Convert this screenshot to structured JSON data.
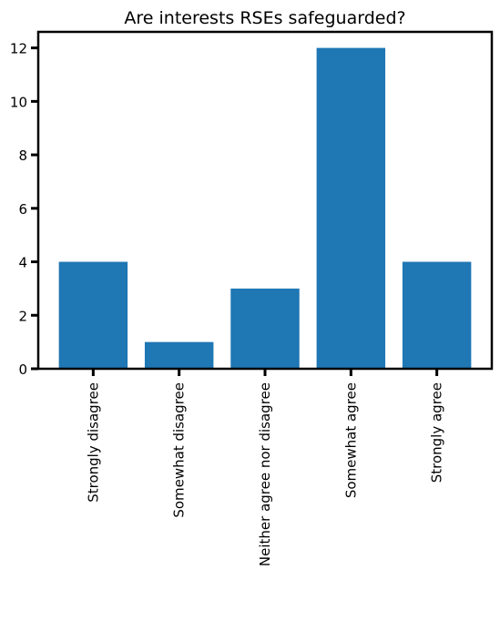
{
  "chart_data": {
    "type": "bar",
    "title": "Are interests RSEs safeguarded?",
    "categories": [
      "Strongly disagree",
      "Somewhat disagree",
      "Neither agree nor disagree",
      "Somewhat agree",
      "Strongly agree"
    ],
    "values": [
      4,
      1,
      3,
      12,
      4
    ],
    "color": "#1f77b4",
    "ylim": [
      0,
      12.6
    ],
    "yticks": [
      0,
      2,
      4,
      6,
      8,
      10,
      12
    ]
  }
}
